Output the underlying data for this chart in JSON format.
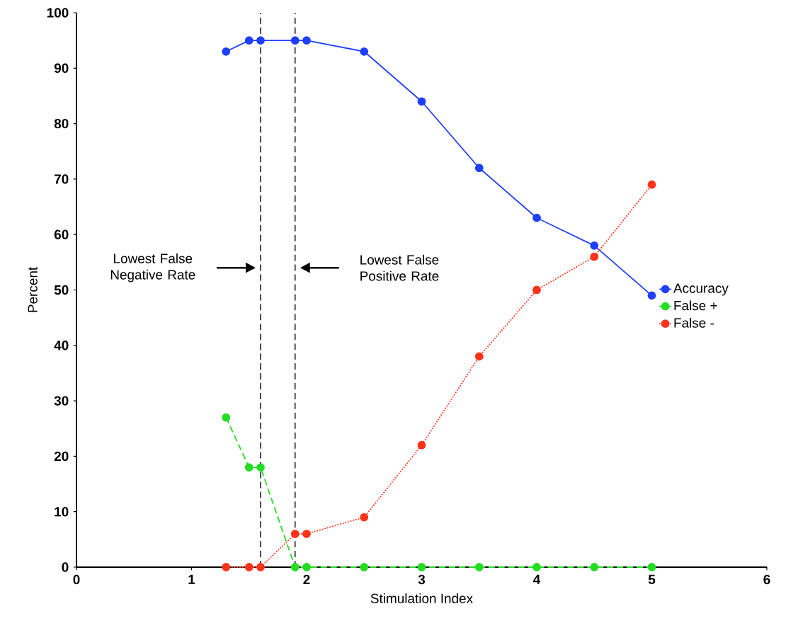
{
  "chart_data": {
    "type": "line",
    "xlabel": "Stimulation Index",
    "ylabel": "Percent",
    "x": [
      1.3,
      1.5,
      1.6,
      1.9,
      2,
      2.5,
      3,
      3.5,
      4,
      4.5,
      5
    ],
    "series": [
      {
        "name": "Accuracy",
        "color": "#1f3fff",
        "line_style": "solid",
        "values": [
          93,
          95,
          95,
          95,
          95,
          93,
          84,
          72,
          63,
          58,
          49
        ]
      },
      {
        "name": "False +",
        "color": "#22dd22",
        "line_style": "dashed",
        "values": [
          27,
          18,
          18,
          0,
          0,
          0,
          0,
          0,
          0,
          0,
          0
        ]
      },
      {
        "name": "False -",
        "color": "#ff3319",
        "line_style": "dotted",
        "values": [
          0,
          0,
          0,
          6,
          6,
          9,
          22,
          38,
          50,
          56,
          69
        ]
      }
    ],
    "xlim": [
      0,
      6
    ],
    "ylim": [
      0,
      100
    ],
    "xticks": [
      0,
      1,
      2,
      3,
      4,
      5,
      6
    ],
    "yticks": [
      0,
      10,
      20,
      30,
      40,
      50,
      60,
      70,
      80,
      90,
      100
    ],
    "ref_lines": [
      {
        "axis": "x",
        "value": 1.6,
        "color": "#000000",
        "line_style": "dashed"
      },
      {
        "axis": "x",
        "value": 1.9,
        "color": "#000000",
        "line_style": "dashed"
      }
    ],
    "annotations": [
      "Lowest False Negative Rate",
      "Lowest False Positive Rate"
    ],
    "marker": "circle",
    "legend": "right",
    "grid": false
  }
}
